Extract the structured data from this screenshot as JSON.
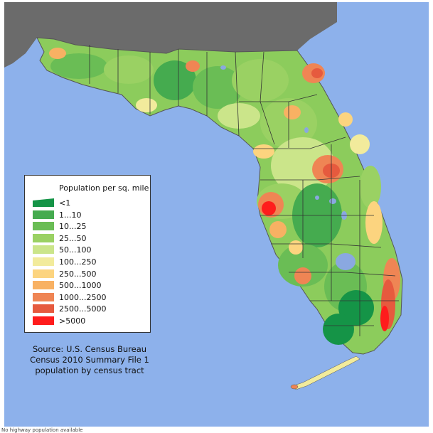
{
  "legend": {
    "title": "Population per sq. mile",
    "items": [
      {
        "label": "<1",
        "color": "#159447"
      },
      {
        "label": "1...10",
        "color": "#45ab4f"
      },
      {
        "label": "10...25",
        "color": "#6abd55"
      },
      {
        "label": "25...50",
        "color": "#9ad163"
      },
      {
        "label": "50...100",
        "color": "#cbe58a"
      },
      {
        "label": "100...250",
        "color": "#f2eb9c"
      },
      {
        "label": "250...500",
        "color": "#fcd47f"
      },
      {
        "label": "500...1000",
        "color": "#f8b163"
      },
      {
        "label": "1000...2500",
        "color": "#ef8554"
      },
      {
        "label": "2500...5000",
        "color": "#e65a3e"
      },
      {
        "label": ">5000",
        "color": "#ff1c1c"
      }
    ]
  },
  "source": {
    "line1": "Source: U.S. Census Bureau",
    "line2": "Census 2010 Summary File 1",
    "line3": "population by census tract"
  },
  "footnote": "No highway population available",
  "colors": {
    "water": "#8db1eb",
    "neighbor_land": "#6b6b6b",
    "county_border": "#333333",
    "lake": "#8aa8e0"
  }
}
